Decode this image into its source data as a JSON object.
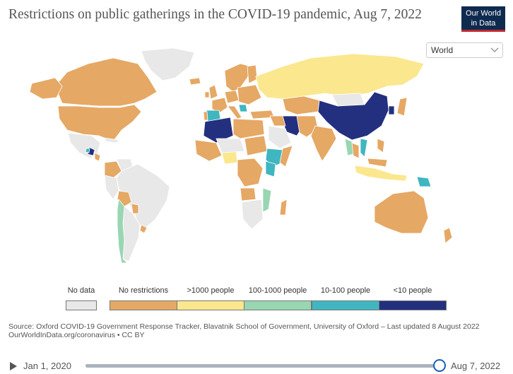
{
  "title": "Restrictions on public gatherings in the COVID-19 pandemic, Aug 7, 2022",
  "logo": {
    "line1": "Our World",
    "line2": "in Data"
  },
  "region_select": {
    "value": "World",
    "icon": "chevron-down-icon"
  },
  "legend": {
    "no_data": {
      "label": "No data",
      "color": "#e8e8e8"
    },
    "categories": [
      {
        "label": "No restrictions",
        "color": "#e5a865"
      },
      {
        "label": ">1000 people",
        "color": "#fbe78e"
      },
      {
        "label": "100-1000 people",
        "color": "#99d6b2"
      },
      {
        "label": "10-100 people",
        "color": "#3fb6c0"
      },
      {
        "label": "<10 people",
        "color": "#23307f"
      }
    ]
  },
  "map_colors": {
    "background": "#ffffff",
    "country_border": "#ffffff"
  },
  "source": {
    "line1": "Source: Oxford COVID-19 Government Response Tracker, Blavatnik School of Government, University of Oxford – Last updated 8 August 2022",
    "line2": "OurWorldInData.org/coronavirus • CC BY"
  },
  "timeline": {
    "start": "Jan 1, 2020",
    "end": "Aug 7, 2022",
    "progress": 1.0
  }
}
